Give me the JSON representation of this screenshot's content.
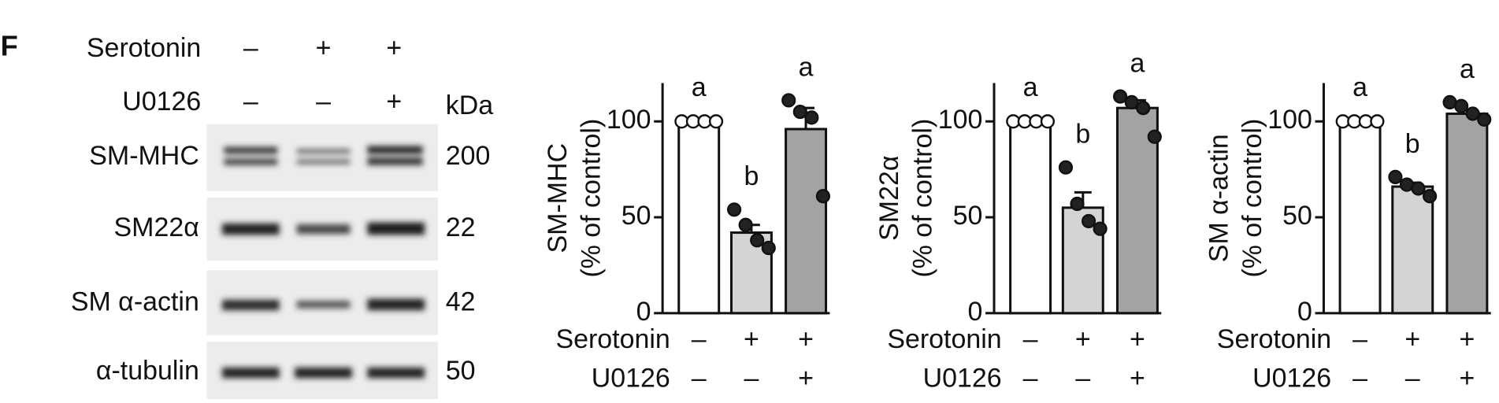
{
  "panel_label": "F",
  "blot": {
    "treatments": [
      {
        "name": "Serotonin",
        "signs": [
          "–",
          "+",
          "+"
        ]
      },
      {
        "name": "U0126",
        "signs": [
          "–",
          "–",
          "+"
        ]
      }
    ],
    "mw_unit": "kDa",
    "rows": [
      {
        "name": "SM-MHC",
        "mw": 200
      },
      {
        "name": "SM22α",
        "mw": 22
      },
      {
        "name": "SM α-actin",
        "mw": 42
      },
      {
        "name": "α-tubulin",
        "mw": 50
      }
    ]
  },
  "chart_data": [
    {
      "type": "bar",
      "y_label": [
        "SM-MHC",
        "(% of control)"
      ],
      "treatments": [
        {
          "name": "Serotonin",
          "signs": [
            "–",
            "+",
            "+"
          ]
        },
        {
          "name": "U0126",
          "signs": [
            "–",
            "–",
            "+"
          ]
        }
      ],
      "values": [
        100,
        42,
        96
      ],
      "errors": [
        0.5,
        4,
        11
      ],
      "points": [
        [
          100,
          100,
          100,
          100
        ],
        [
          54,
          46,
          38,
          34
        ],
        [
          111,
          105,
          102,
          61
        ]
      ],
      "letters": [
        "a",
        "b",
        "a"
      ],
      "bar_colors": [
        "#ffffff",
        "#d4d4d4",
        "#a3a3a3"
      ],
      "point_fills": [
        "#ffffff",
        "#222222",
        "#222222"
      ],
      "ylim": [
        0,
        120
      ],
      "yticks": [
        0,
        50,
        100
      ]
    },
    {
      "type": "bar",
      "y_label": [
        "SM22α",
        "(% of control)"
      ],
      "treatments": [
        {
          "name": "Serotonin",
          "signs": [
            "–",
            "+",
            "+"
          ]
        },
        {
          "name": "U0126",
          "signs": [
            "–",
            "–",
            "+"
          ]
        }
      ],
      "values": [
        100,
        55,
        107
      ],
      "errors": [
        0.5,
        8,
        4
      ],
      "points": [
        [
          100,
          100,
          100,
          100
        ],
        [
          76,
          57,
          48,
          44
        ],
        [
          113,
          110,
          107,
          92
        ]
      ],
      "letters": [
        "a",
        "b",
        "a"
      ],
      "bar_colors": [
        "#ffffff",
        "#d4d4d4",
        "#a3a3a3"
      ],
      "point_fills": [
        "#ffffff",
        "#222222",
        "#222222"
      ],
      "ylim": [
        0,
        120
      ],
      "yticks": [
        0,
        50,
        100
      ]
    },
    {
      "type": "bar",
      "y_label": [
        "SM α-actin",
        "(% of control)"
      ],
      "treatments": [
        {
          "name": "Serotonin",
          "signs": [
            "–",
            "+",
            "+"
          ]
        },
        {
          "name": "U0126",
          "signs": [
            "–",
            "–",
            "+"
          ]
        }
      ],
      "values": [
        100,
        66,
        104
      ],
      "errors": [
        0.5,
        2,
        2
      ],
      "points": [
        [
          100,
          100,
          100,
          100
        ],
        [
          71,
          67,
          65,
          61
        ],
        [
          110,
          108,
          104,
          101
        ]
      ],
      "letters": [
        "a",
        "b",
        "a"
      ],
      "bar_colors": [
        "#ffffff",
        "#d4d4d4",
        "#a3a3a3"
      ],
      "point_fills": [
        "#ffffff",
        "#222222",
        "#222222"
      ],
      "ylim": [
        0,
        120
      ],
      "yticks": [
        0,
        50,
        100
      ]
    }
  ]
}
